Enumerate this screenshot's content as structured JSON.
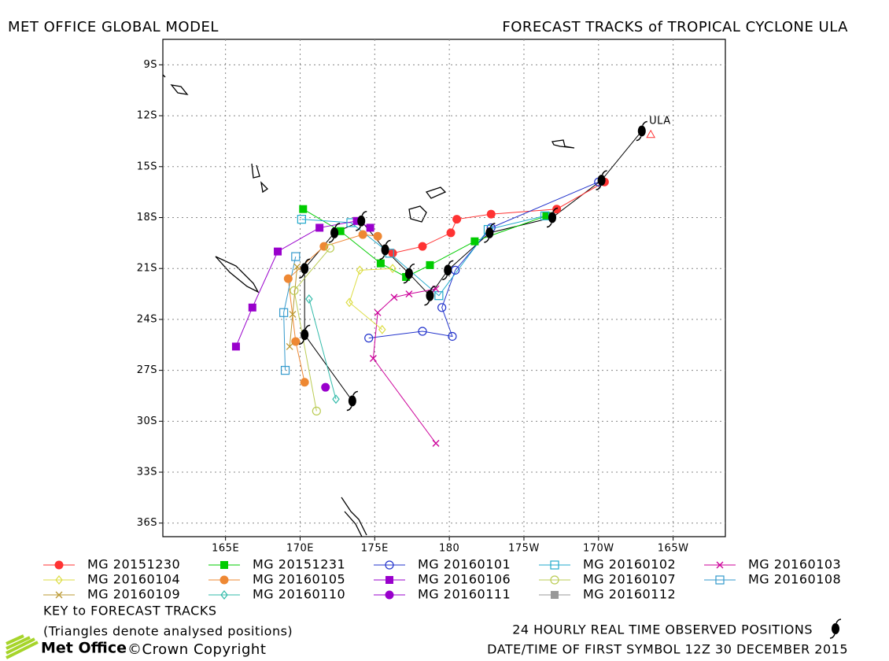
{
  "chart_data": {
    "type": "track",
    "header": "MET OFFICE GLOBAL MODEL",
    "title": "FORECAST TRACKS of TROPICAL CYCLONE ULA",
    "xlim": [
      160.8,
      198.5
    ],
    "ylim": [
      -36.8,
      -7.5
    ],
    "xticks": [
      {
        "value": 165,
        "label": "165E"
      },
      {
        "value": 170,
        "label": "170E"
      },
      {
        "value": 175,
        "label": "175E"
      },
      180,
      {
        "value": 185,
        "label": "175W"
      },
      {
        "value": 190,
        "label": "170W"
      },
      {
        "value": 195,
        "label": "165W"
      }
    ],
    "yticks": [
      {
        "value": -9,
        "label": "9S"
      },
      {
        "value": -12,
        "label": "12S"
      },
      {
        "value": -15,
        "label": "15S"
      },
      {
        "value": -18,
        "label": "18S"
      },
      {
        "value": -21,
        "label": "21S"
      },
      {
        "value": -24,
        "label": "24S"
      },
      {
        "value": -27,
        "label": "27S"
      },
      {
        "value": -30,
        "label": "30S"
      },
      {
        "value": -33,
        "label": "33S"
      },
      {
        "value": -36,
        "label": "36S"
      }
    ],
    "grid": true,
    "series": [
      {
        "name": "MG 20151230",
        "color": "#ff3333",
        "marker": "circle",
        "x": [
          190.4,
          187.2,
          182.8,
          180.5,
          180.1,
          178.2,
          176.2
        ],
        "y": [
          -15.9,
          -17.5,
          -17.8,
          -18.1,
          -18.9,
          -19.7,
          -20.1
        ]
      },
      {
        "name": "MG 20151231",
        "color": "#00cc00",
        "marker": "square",
        "x": [
          186.5,
          181.7,
          178.7,
          177.1,
          175.4,
          172.7,
          170.2
        ],
        "y": [
          -17.9,
          -19.4,
          -20.8,
          -21.5,
          -20.7,
          -18.8,
          -17.5
        ]
      },
      {
        "name": "MG 20160101",
        "color": "#2233cc",
        "marker": "open-circle",
        "x": [
          190.0,
          182.8,
          180.4,
          179.5,
          180.2,
          178.2,
          174.6
        ],
        "y": [
          -15.9,
          -18.6,
          -21.1,
          -23.3,
          -25.0,
          -24.7,
          -25.1
        ]
      },
      {
        "name": "MG 20160102",
        "color": "#22aacc",
        "marker": "open-square",
        "x": [
          186.4,
          182.6,
          179.3,
          176.0,
          173.4,
          170.1
        ],
        "y": [
          -17.9,
          -18.7,
          -22.6,
          -20.1,
          -18.3,
          -18.1
        ]
      },
      {
        "name": "MG 20160103",
        "color": "#cc0099",
        "marker": "x",
        "x": [
          179.1,
          177.3,
          176.3,
          175.2,
          174.9,
          179.1
        ],
        "y": [
          -22.2,
          -22.5,
          -22.7,
          -23.6,
          -26.3,
          -31.3
        ]
      },
      {
        "name": "MG 20160104",
        "color": "#dddd44",
        "marker": "diamond",
        "x": [
          176.2,
          174.0,
          173.3,
          175.5
        ],
        "y": [
          -21.0,
          -21.1,
          -23.0,
          -24.6
        ]
      },
      {
        "name": "MG 20160105",
        "color": "#ee8833",
        "marker": "circle",
        "x": [
          175.2,
          174.2,
          171.6,
          169.2,
          169.7,
          170.3
        ],
        "y": [
          -19.1,
          -19.0,
          -19.7,
          -21.6,
          -25.3,
          -27.7
        ]
      },
      {
        "name": "MG 20160106",
        "color": "#9900cc",
        "marker": "square",
        "x": [
          174.7,
          173.8,
          171.3,
          168.5,
          166.8,
          165.7
        ],
        "y": [
          -18.6,
          -18.2,
          -18.6,
          -20.0,
          -23.3,
          -25.6
        ]
      },
      {
        "name": "MG 20160107",
        "color": "#bbcc55",
        "marker": "open-circle",
        "x": [
          172.0,
          169.6,
          171.1
        ],
        "y": [
          -19.8,
          -22.3,
          -29.4
        ]
      },
      {
        "name": "MG 20160108",
        "color": "#3399cc",
        "marker": "open-square",
        "x": [
          169.7,
          168.9,
          169.0
        ],
        "y": [
          -20.3,
          -23.6,
          -27.0
        ]
      },
      {
        "name": "MG 20160109",
        "color": "#bb9933",
        "marker": "x",
        "x": [
          169.8,
          169.5,
          169.3
        ],
        "y": [
          -20.9,
          -23.7,
          -25.6
        ]
      },
      {
        "name": "MG 20160110",
        "color": "#33bbaa",
        "marker": "diamond",
        "x": [
          170.6,
          172.4
        ],
        "y": [
          -22.8,
          -28.7
        ]
      },
      {
        "name": "MG 20160111",
        "color": "#9900cc",
        "marker": "circle",
        "x": [
          171.7
        ],
        "y": [
          -28.0
        ]
      },
      {
        "name": "MG 20160112",
        "color": "#999999",
        "marker": "square",
        "x": [],
        "y": []
      }
    ],
    "observed": {
      "color": "#000000",
      "x": [
        192.9,
        190.2,
        186.9,
        182.7,
        179.9,
        178.7,
        177.3,
        175.7,
        174.1,
        172.3,
        170.3,
        170.3,
        173.5
      ],
      "y": [
        -12.9,
        -15.8,
        -18.0,
        -18.9,
        -21.1,
        -22.6,
        -21.3,
        -19.9,
        -18.2,
        -18.9,
        -21.0,
        -24.9,
        -28.8
      ]
    },
    "storm": {
      "label": "ULA",
      "x": 193.5,
      "y": -13.1
    },
    "key_title": "KEY to FORECAST TRACKS",
    "key_note": "(Triangles denote analysed positions)",
    "observed_note": "24 HOURLY REAL TIME OBSERVED POSITIONS",
    "date_note": "DATE/TIME OF FIRST SYMBOL 12Z 30 DECEMBER 2015",
    "logo": "Met Office",
    "copyright": "©Crown Copyright"
  }
}
